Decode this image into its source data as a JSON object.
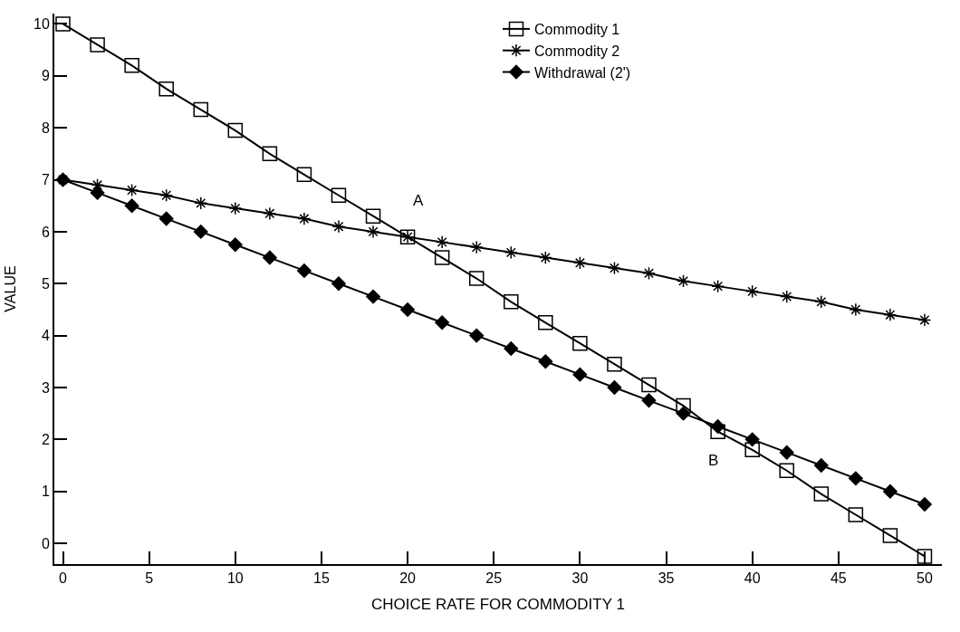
{
  "chart_data": {
    "type": "line",
    "xlabel": "CHOICE RATE FOR COMMODITY 1",
    "ylabel": "VALUE",
    "x": [
      0,
      2,
      4,
      6,
      8,
      10,
      12,
      14,
      16,
      18,
      20,
      22,
      24,
      26,
      28,
      30,
      32,
      34,
      36,
      38,
      40,
      42,
      44,
      46,
      48,
      50
    ],
    "series": [
      {
        "name": "Commodity 1",
        "color": "#000000",
        "marker": "square",
        "values": [
          10,
          9.6,
          9.2,
          8.75,
          8.35,
          7.95,
          7.5,
          7.1,
          6.7,
          6.3,
          5.9,
          5.5,
          5.1,
          4.65,
          4.25,
          3.85,
          3.45,
          3.05,
          2.65,
          2.15,
          1.8,
          1.4,
          0.95,
          0.55,
          0.15,
          -0.25
        ]
      },
      {
        "name": "Commodity 2",
        "color": "#000000",
        "marker": "cross",
        "values": [
          7,
          6.9,
          6.8,
          6.7,
          6.55,
          6.45,
          6.35,
          6.25,
          6.1,
          6.0,
          5.9,
          5.8,
          5.7,
          5.6,
          5.5,
          5.4,
          5.3,
          5.2,
          5.05,
          4.95,
          4.85,
          4.75,
          4.65,
          4.5,
          4.4,
          4.3
        ]
      },
      {
        "name": "Withdrawal (2')",
        "color": "#000000",
        "marker": "diamond",
        "values": [
          7,
          6.75,
          6.5,
          6.25,
          6.0,
          5.75,
          5.5,
          5.25,
          5.0,
          4.75,
          4.5,
          4.25,
          4.0,
          3.75,
          3.5,
          3.25,
          3.0,
          2.75,
          2.5,
          2.25,
          2.0,
          1.75,
          1.5,
          1.25,
          1.0,
          0.75
        ]
      }
    ],
    "annotations": [
      "A",
      "B"
    ],
    "xlim": [
      -0.5,
      51
    ],
    "xticks": [
      0,
      5,
      10,
      15,
      20,
      25,
      30,
      35,
      40,
      45,
      50
    ],
    "ylim": [
      -0.4,
      10.2
    ],
    "yticks": [
      0,
      1,
      2,
      3,
      4,
      5,
      6,
      7,
      8,
      9,
      10
    ],
    "legend": "top right",
    "line_style": "solid"
  }
}
